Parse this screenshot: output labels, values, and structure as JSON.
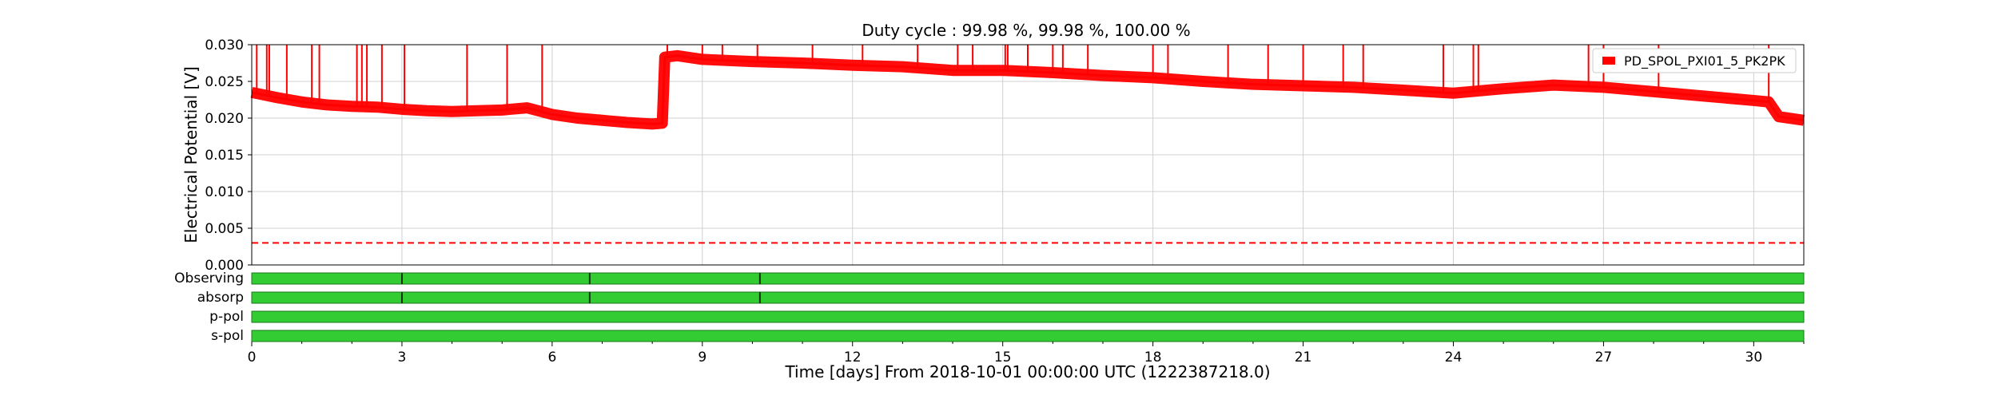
{
  "chart_data": {
    "type": "line",
    "title": "Duty cycle : 99.98 %, 99.98 %, 100.00 %",
    "xlabel": "Time [days] From 2018-10-01 00:00:00 UTC (1222387218.0)",
    "ylabel": "Electrical Potential [V]",
    "xlim": [
      0,
      31
    ],
    "ylim": [
      0,
      0.03
    ],
    "xticks": [
      "0",
      "3",
      "6",
      "9",
      "12",
      "15",
      "18",
      "21",
      "24",
      "27",
      "30"
    ],
    "yticks": [
      "0.000",
      "0.005",
      "0.010",
      "0.015",
      "0.020",
      "0.025",
      "0.030"
    ],
    "grid": true,
    "legend": {
      "placement": "top-right",
      "entries": [
        "PD_SPOL_PXI01_5_PK2PK"
      ]
    },
    "series": [
      {
        "name": "PD_SPOL_PXI01_5_PK2PK",
        "color": "#ff0000",
        "x": [
          0,
          0.5,
          1,
          1.5,
          2,
          2.5,
          3,
          3.5,
          4,
          4.5,
          5,
          5.5,
          6,
          6.5,
          7,
          7.5,
          8,
          8.2,
          8.25,
          8.5,
          9,
          10,
          11,
          12,
          13,
          14,
          15,
          16,
          17,
          18,
          19,
          20,
          21,
          22,
          23,
          24,
          25,
          26,
          27,
          28,
          29,
          30,
          30.3,
          30.5,
          31
        ],
        "y": [
          0.0235,
          0.0228,
          0.0222,
          0.0218,
          0.0216,
          0.0215,
          0.0212,
          0.021,
          0.0209,
          0.021,
          0.0211,
          0.0214,
          0.0205,
          0.02,
          0.0197,
          0.0194,
          0.0192,
          0.0193,
          0.0283,
          0.0285,
          0.028,
          0.0277,
          0.0275,
          0.0272,
          0.027,
          0.0265,
          0.0265,
          0.0262,
          0.0258,
          0.0255,
          0.025,
          0.0246,
          0.0244,
          0.0242,
          0.0238,
          0.0234,
          0.024,
          0.0245,
          0.0242,
          0.0236,
          0.023,
          0.0224,
          0.0222,
          0.0202,
          0.0197
        ]
      }
    ],
    "spikes_x": [
      0.1,
      0.3,
      0.35,
      0.7,
      1.2,
      1.35,
      2.1,
      2.2,
      2.3,
      2.6,
      3.05,
      4.3,
      5.1,
      5.8,
      8.3,
      9.0,
      9.4,
      10.1,
      11.2,
      12.2,
      13.3,
      14.1,
      14.4,
      15.05,
      15.1,
      15.5,
      16.0,
      16.2,
      16.7,
      18.0,
      18.3,
      19.5,
      20.3,
      21.0,
      21.8,
      22.2,
      23.8,
      24.4,
      24.5,
      26.7,
      27.0,
      28.1,
      30.3
    ],
    "threshold": {
      "y": 0.003,
      "color": "#ff0000"
    },
    "state_segments": {
      "rows": [
        "Observing",
        "absorp",
        "p-pol",
        "s-pol"
      ],
      "color": "#33cc33",
      "gaps": [
        [
          3.0,
          6.75,
          10.15
        ],
        [
          3.0,
          6.75,
          10.15
        ],
        [],
        []
      ]
    }
  }
}
